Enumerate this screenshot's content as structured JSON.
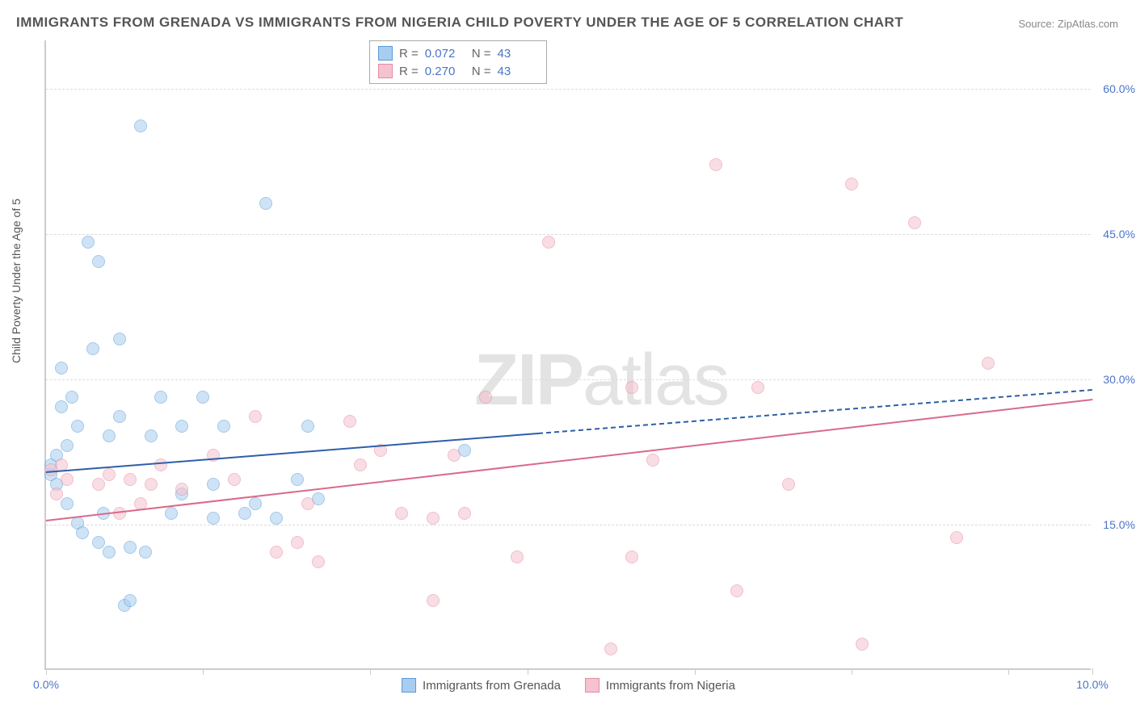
{
  "title": "IMMIGRANTS FROM GRENADA VS IMMIGRANTS FROM NIGERIA CHILD POVERTY UNDER THE AGE OF 5 CORRELATION CHART",
  "source": "Source: ZipAtlas.com",
  "ylabel": "Child Poverty Under the Age of 5",
  "watermark_bold": "ZIP",
  "watermark_light": "atlas",
  "chart": {
    "type": "scatter",
    "background_color": "#ffffff",
    "grid_color": "#dddddd",
    "axis_color": "#cccccc",
    "title_color": "#555555",
    "title_fontsize": 17,
    "label_fontsize": 14,
    "tick_color": "#4a74c9",
    "xlim": [
      0,
      10
    ],
    "ylim": [
      0,
      65
    ],
    "yticks": [
      15,
      30,
      45,
      60
    ],
    "ytick_labels": [
      "15.0%",
      "30.0%",
      "45.0%",
      "60.0%"
    ],
    "xticks": [
      0,
      1.5,
      3.1,
      4.6,
      6.2,
      7.7,
      9.2,
      10
    ],
    "xtick_labels": {
      "0": "0.0%",
      "10": "10.0%"
    },
    "point_radius": 8,
    "point_opacity": 0.55,
    "series": [
      {
        "name": "Immigrants from Grenada",
        "fill": "#a8cdf0",
        "stroke": "#5b9bd5",
        "stats": {
          "R": "0.072",
          "N": "43"
        },
        "trend": {
          "x1": 0,
          "y1": 20.5,
          "x2": 4.7,
          "y2": 24.5,
          "dash_x2": 10,
          "dash_y2": 29.0,
          "color": "#2e5fa8",
          "width": 2
        },
        "points": [
          [
            0.05,
            20
          ],
          [
            0.05,
            21
          ],
          [
            0.1,
            22
          ],
          [
            0.1,
            19
          ],
          [
            0.15,
            27
          ],
          [
            0.15,
            31
          ],
          [
            0.2,
            23
          ],
          [
            0.2,
            17
          ],
          [
            0.25,
            28
          ],
          [
            0.3,
            25
          ],
          [
            0.3,
            15
          ],
          [
            0.35,
            14
          ],
          [
            0.4,
            44
          ],
          [
            0.45,
            33
          ],
          [
            0.5,
            42
          ],
          [
            0.5,
            13
          ],
          [
            0.55,
            16
          ],
          [
            0.6,
            24
          ],
          [
            0.6,
            12
          ],
          [
            0.7,
            34
          ],
          [
            0.7,
            26
          ],
          [
            0.75,
            6.5
          ],
          [
            0.8,
            12.5
          ],
          [
            0.8,
            7
          ],
          [
            0.9,
            56
          ],
          [
            0.95,
            12
          ],
          [
            1.0,
            24
          ],
          [
            1.1,
            28
          ],
          [
            1.2,
            16
          ],
          [
            1.3,
            18
          ],
          [
            1.3,
            25
          ],
          [
            1.5,
            28
          ],
          [
            1.6,
            15.5
          ],
          [
            1.6,
            19
          ],
          [
            1.7,
            25
          ],
          [
            1.9,
            16
          ],
          [
            2.0,
            17
          ],
          [
            2.1,
            48
          ],
          [
            2.2,
            15.5
          ],
          [
            2.4,
            19.5
          ],
          [
            2.5,
            25
          ],
          [
            2.6,
            17.5
          ],
          [
            4.0,
            22.5
          ]
        ]
      },
      {
        "name": "Immigrants from Nigeria",
        "fill": "#f5c2cf",
        "stroke": "#e68aa2",
        "stats": {
          "R": "0.270",
          "N": "43"
        },
        "trend": {
          "x1": 0,
          "y1": 15.5,
          "x2": 10,
          "y2": 28.0,
          "color": "#d96a8a",
          "width": 2
        },
        "points": [
          [
            0.05,
            20.5
          ],
          [
            0.1,
            18
          ],
          [
            0.15,
            21
          ],
          [
            0.2,
            19.5
          ],
          [
            0.5,
            19
          ],
          [
            0.6,
            20
          ],
          [
            0.7,
            16
          ],
          [
            0.8,
            19.5
          ],
          [
            0.9,
            17
          ],
          [
            1.0,
            19
          ],
          [
            1.1,
            21
          ],
          [
            1.3,
            18.5
          ],
          [
            1.6,
            22
          ],
          [
            1.8,
            19.5
          ],
          [
            2.0,
            26
          ],
          [
            2.2,
            12
          ],
          [
            2.4,
            13
          ],
          [
            2.5,
            17
          ],
          [
            2.6,
            11
          ],
          [
            2.9,
            25.5
          ],
          [
            3.0,
            21
          ],
          [
            3.2,
            22.5
          ],
          [
            3.4,
            16
          ],
          [
            3.7,
            15.5
          ],
          [
            3.7,
            7
          ],
          [
            3.9,
            22
          ],
          [
            4.0,
            16
          ],
          [
            4.2,
            28
          ],
          [
            4.5,
            11.5
          ],
          [
            4.8,
            44
          ],
          [
            5.4,
            2
          ],
          [
            5.6,
            29
          ],
          [
            5.6,
            11.5
          ],
          [
            5.8,
            21.5
          ],
          [
            6.4,
            52
          ],
          [
            6.6,
            8
          ],
          [
            6.8,
            29
          ],
          [
            7.1,
            19
          ],
          [
            7.7,
            50
          ],
          [
            7.8,
            2.5
          ],
          [
            8.3,
            46
          ],
          [
            8.7,
            13.5
          ],
          [
            9.0,
            31.5
          ]
        ]
      }
    ],
    "legend": {
      "stats_labels": {
        "R": "R =",
        "N": "N ="
      }
    }
  }
}
